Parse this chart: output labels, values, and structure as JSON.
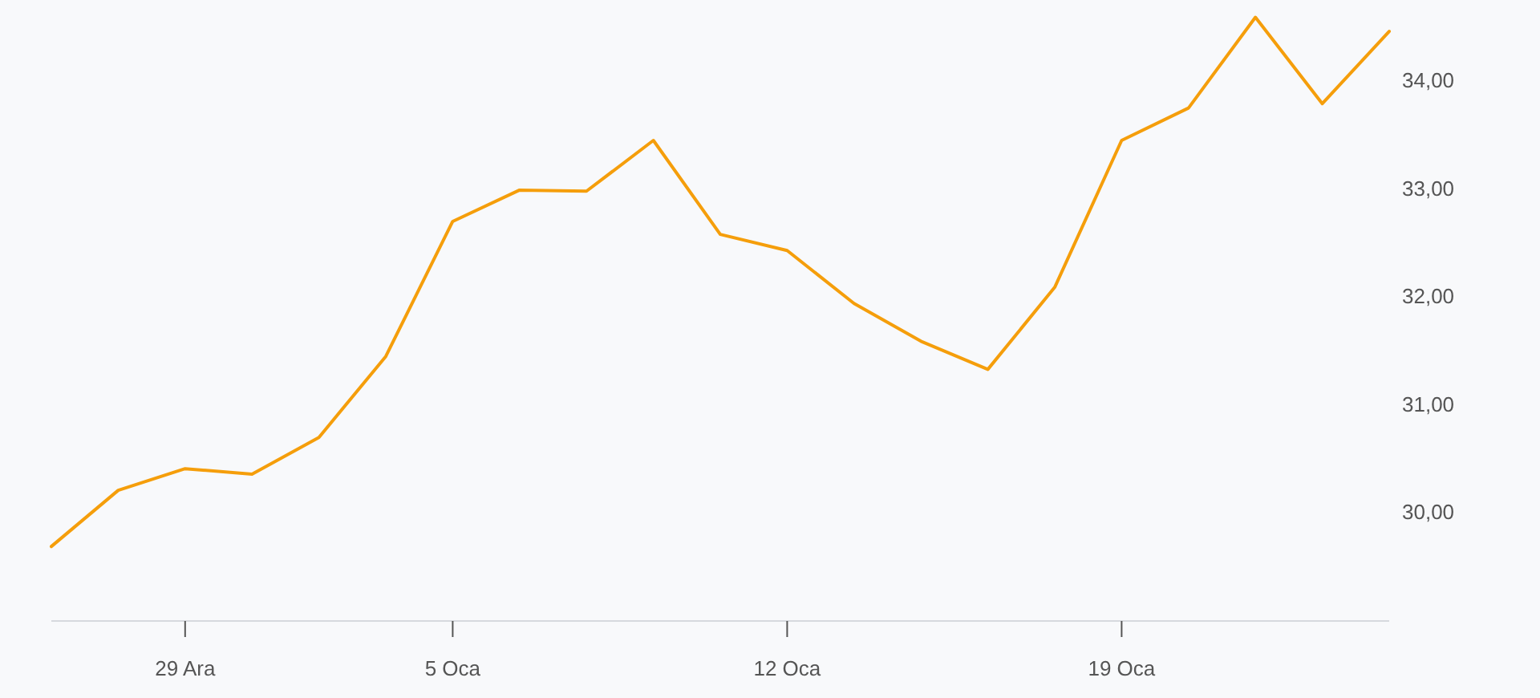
{
  "chart_data": {
    "type": "line",
    "categories": [
      null,
      null,
      "29 Ara",
      null,
      null,
      null,
      "5 Oca",
      null,
      null,
      null,
      null,
      "12 Oca",
      null,
      null,
      null,
      null,
      "19 Oca",
      null,
      null,
      null,
      null
    ],
    "series": [
      {
        "color": "#f59e0b",
        "values": [
          29.69,
          30.21,
          30.41,
          30.36,
          30.7,
          31.45,
          32.7,
          32.99,
          32.98,
          33.45,
          32.58,
          32.43,
          31.94,
          31.59,
          31.33,
          32.09,
          33.45,
          33.75,
          34.59,
          33.79,
          34.46
        ]
      }
    ],
    "ylim": [
      29,
      34.75
    ],
    "yticks": [
      {
        "value": 30,
        "label": "30,00"
      },
      {
        "value": 31,
        "label": "31,00"
      },
      {
        "value": 32,
        "label": "32,00"
      },
      {
        "value": 33,
        "label": "33,00"
      },
      {
        "value": 34,
        "label": "34,00"
      }
    ],
    "marker": "none",
    "line_style": "solid"
  }
}
